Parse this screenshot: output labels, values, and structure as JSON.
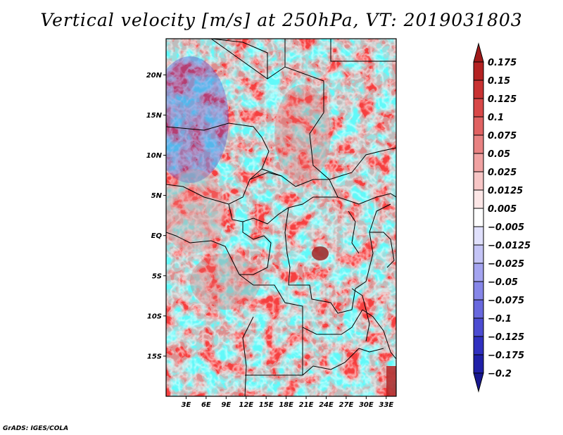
{
  "title": "Vertical velocity [m/s] at 250hPa, VT: 2019031803",
  "footer": "GrADS: IGES/COLA",
  "map": {
    "lat_labels": [
      "20N",
      "15N",
      "10N",
      "5N",
      "EQ",
      "5S",
      "10S",
      "15S"
    ],
    "lon_labels": [
      "3E",
      "6E",
      "9E",
      "12E",
      "15E",
      "18E",
      "21E",
      "24E",
      "27E",
      "30E",
      "33E"
    ],
    "lon_range": [
      0,
      34.5
    ],
    "lat_range": [
      -20,
      24.5
    ]
  },
  "colorbar": {
    "levels": [
      "0.175",
      "0.15",
      "0.125",
      "0.1",
      "0.075",
      "0.05",
      "0.025",
      "0.0125",
      "0.005",
      "−0.005",
      "−0.0125",
      "−0.025",
      "−0.05",
      "−0.075",
      "−0.1",
      "−0.125",
      "−0.175",
      "−0.2"
    ],
    "colors": [
      "#a01a1a",
      "#b42222",
      "#c83232",
      "#d84848",
      "#e06262",
      "#e88282",
      "#f0a2a2",
      "#f7c6c6",
      "#fce6e6",
      "#ffffff",
      "#e0e0fc",
      "#c4c4f6",
      "#a4a4f0",
      "#8686e8",
      "#6868de",
      "#4c4cd2",
      "#3030c0",
      "#2020a8",
      "#181890"
    ]
  }
}
